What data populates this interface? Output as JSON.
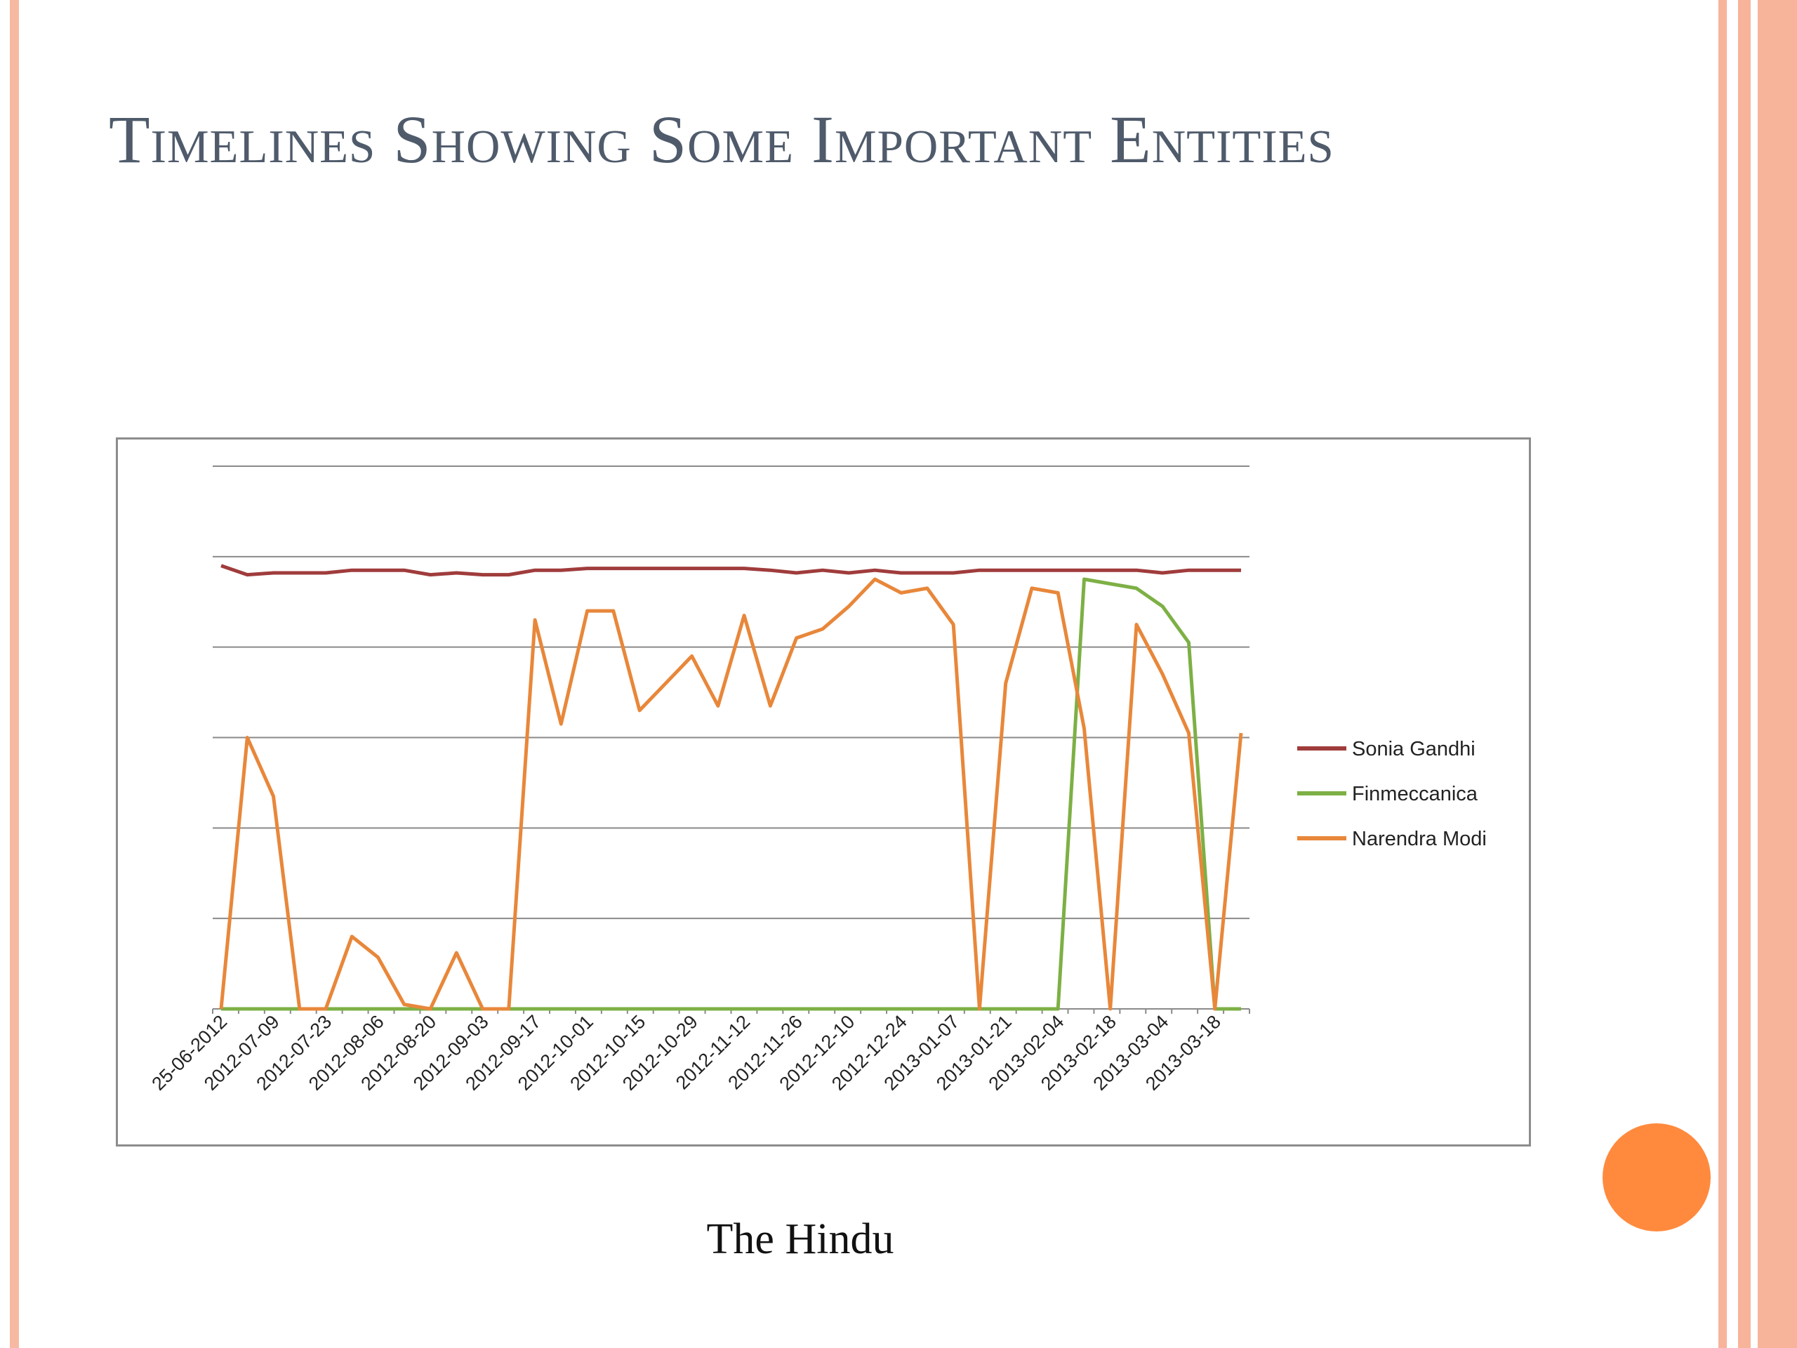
{
  "slide": {
    "title": "Timelines Showing Some Important Entities",
    "caption": "The Hindu"
  },
  "colors": {
    "accent_border": "#f8b9a2",
    "title_color": "#4f5b6b",
    "circle": "#ff8a3d"
  },
  "chart_data": {
    "type": "line",
    "x": [
      "25-06-2012",
      "2012-07-02",
      "2012-07-09",
      "2012-07-16",
      "2012-07-23",
      "2012-07-30",
      "2012-08-06",
      "2012-08-13",
      "2012-08-20",
      "2012-08-27",
      "2012-09-03",
      "2012-09-10",
      "2012-09-17",
      "2012-09-24",
      "2012-10-01",
      "2012-10-08",
      "2012-10-15",
      "2012-10-22",
      "2012-10-29",
      "2012-11-05",
      "2012-11-12",
      "2012-11-19",
      "2012-11-26",
      "2012-12-03",
      "2012-12-10",
      "2012-12-17",
      "2012-12-24",
      "2012-12-31",
      "2013-01-07",
      "2013-01-14",
      "2013-01-21",
      "2013-01-28",
      "2013-02-04",
      "2013-02-11",
      "2013-02-18",
      "2013-02-25",
      "2013-03-04",
      "2013-03-11",
      "2013-03-18",
      "2013-03-25"
    ],
    "tick_labels": [
      "25-06-2012",
      "2012-07-09",
      "2012-07-23",
      "2012-08-06",
      "2012-08-20",
      "2012-09-03",
      "2012-09-17",
      "2012-10-01",
      "2012-10-15",
      "2012-10-29",
      "2012-11-12",
      "2012-11-26",
      "2012-12-10",
      "2012-12-24",
      "2013-01-07",
      "2013-01-21",
      "2013-02-04",
      "2013-02-18",
      "2013-03-04",
      "2013-03-18"
    ],
    "ylim": [
      0,
      6
    ],
    "grid": true,
    "legend_position": "right",
    "series": [
      {
        "name": "Sonia Gandhi",
        "color": "#a03c3c",
        "values": [
          4.9,
          4.8,
          4.82,
          4.82,
          4.82,
          4.85,
          4.85,
          4.85,
          4.8,
          4.82,
          4.8,
          4.8,
          4.85,
          4.85,
          4.87,
          4.87,
          4.87,
          4.87,
          4.87,
          4.87,
          4.87,
          4.85,
          4.82,
          4.85,
          4.82,
          4.85,
          4.82,
          4.82,
          4.82,
          4.85,
          4.85,
          4.85,
          4.85,
          4.85,
          4.85,
          4.85,
          4.82,
          4.85,
          4.85,
          4.85
        ]
      },
      {
        "name": "Finmeccanica",
        "color": "#7db045",
        "values": [
          0,
          0,
          0,
          0,
          0,
          0,
          0,
          0,
          0,
          0,
          0,
          0,
          0,
          0,
          0,
          0,
          0,
          0,
          0,
          0,
          0,
          0,
          0,
          0,
          0,
          0,
          0,
          0,
          0,
          0,
          0,
          0,
          0,
          4.75,
          4.7,
          4.65,
          4.45,
          4.05,
          0,
          0
        ]
      },
      {
        "name": "Narendra Modi",
        "color": "#e8873a",
        "values": [
          0,
          3,
          2.35,
          0,
          0,
          0.8,
          0.57,
          0.05,
          0,
          0.62,
          0,
          0,
          4.3,
          3.15,
          4.4,
          4.4,
          3.3,
          3.6,
          3.9,
          3.35,
          4.35,
          3.35,
          4.1,
          4.2,
          4.45,
          4.75,
          4.6,
          4.65,
          4.25,
          0,
          3.6,
          4.65,
          4.6,
          3.1,
          0,
          4.25,
          3.7,
          3.05,
          0,
          3.05
        ]
      }
    ]
  }
}
